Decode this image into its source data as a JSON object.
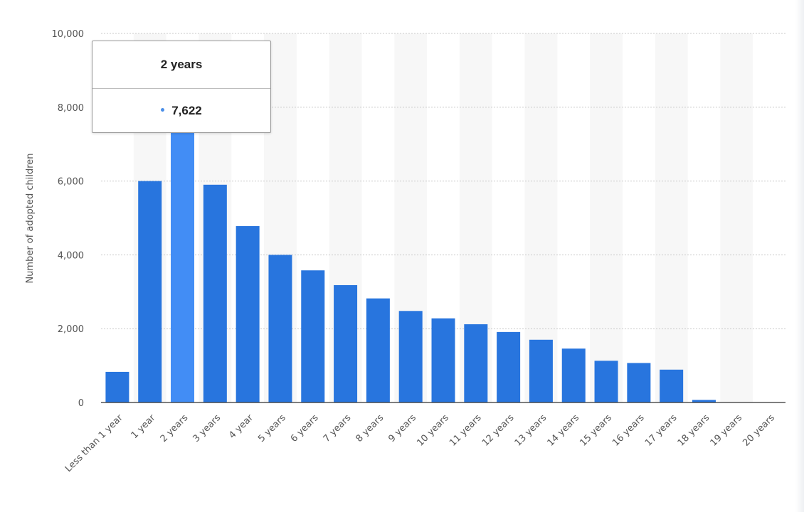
{
  "chart_data": {
    "type": "bar",
    "ylabel": "Number of adopted children",
    "xlabel": "",
    "ylim": [
      0,
      10000
    ],
    "yticks": [
      0,
      2000,
      4000,
      6000,
      8000,
      10000
    ],
    "ytick_labels": [
      "0",
      "2,000",
      "4,000",
      "6,000",
      "8,000",
      "10,000"
    ],
    "grid": "horizontal dotted",
    "categories": [
      "Less than 1 year",
      "1 year",
      "2 years",
      "3 years",
      "4 year",
      "5 years",
      "6 years",
      "7 years",
      "8 years",
      "9 years",
      "10 years",
      "11 years",
      "12 years",
      "13 years",
      "14 years",
      "15 years",
      "16 years",
      "17 years",
      "18 years",
      "19 years",
      "20 years"
    ],
    "values": [
      830,
      6000,
      7622,
      5900,
      4780,
      4000,
      3580,
      3180,
      2820,
      2480,
      2280,
      2120,
      1910,
      1700,
      1460,
      1130,
      1070,
      890,
      70,
      0,
      0
    ],
    "highlighted_index": 2,
    "colors": {
      "bar": "#2875de",
      "highlight": "#428df5",
      "band": "#f7f7f7"
    }
  },
  "tooltip": {
    "category": "2 years",
    "value": "7,622"
  }
}
